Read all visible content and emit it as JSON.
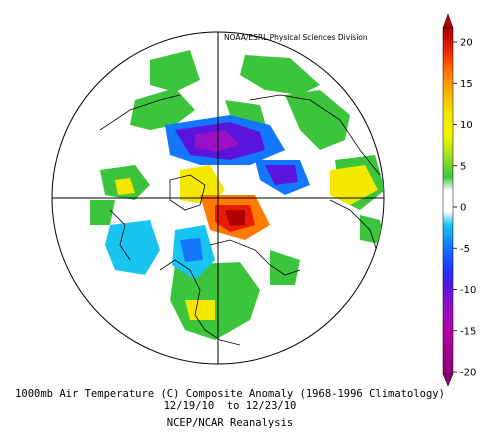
{
  "map": {
    "credit": "NOAA/ESRL Physical Sciences Division",
    "projection": "north-polar-stereographic",
    "colorbar": {
      "ticks": [
        "20",
        "15",
        "10",
        "5",
        "0",
        "-5",
        "-10",
        "-15",
        "-20"
      ],
      "colors": [
        "#b00000",
        "#e81c00",
        "#ff7a00",
        "#ffb400",
        "#f4e800",
        "#f4f400",
        "#9fe020",
        "#3cc43c",
        "#ffffff",
        "#ffffff",
        "#18c4f0",
        "#1478ff",
        "#1c3cff",
        "#5a14dc",
        "#9a10c4",
        "#b000a0",
        "#900078"
      ]
    },
    "caption": {
      "line1": "1000mb Air Temperature (C) Composite Anomaly (1968-1996 Climatology)",
      "line2": "12/19/10  to 12/23/10",
      "line3": "NCEP/NCAR Reanalysis"
    }
  }
}
